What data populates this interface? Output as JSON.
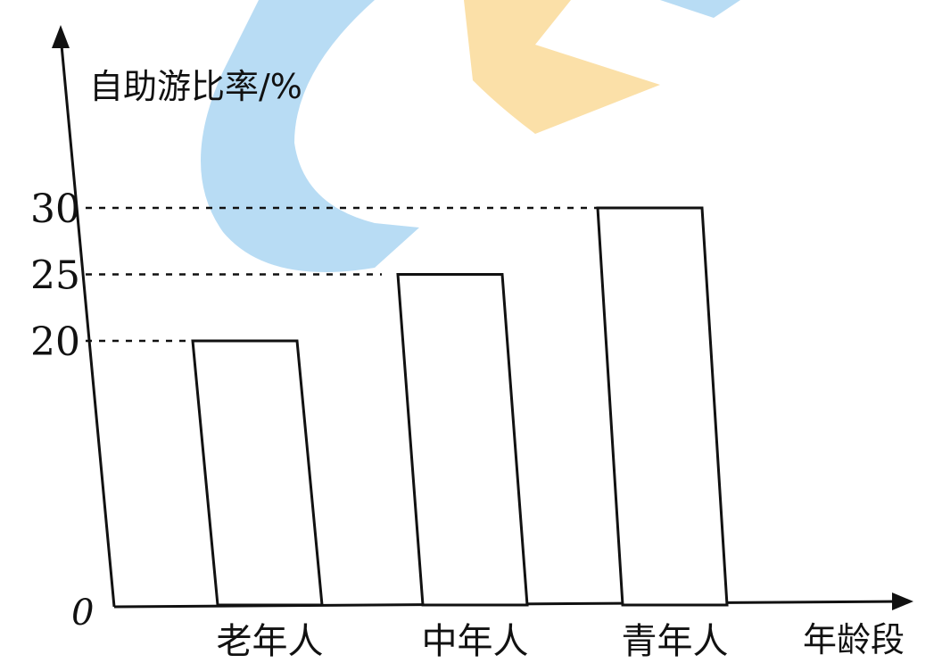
{
  "chart_data": {
    "type": "bar",
    "categories": [
      "老年人",
      "中年人",
      "青年人"
    ],
    "values": [
      20,
      25,
      30
    ],
    "title": "",
    "xlabel": "年龄段",
    "ylabel": "自助游比率/%",
    "yticks": [
      20,
      25,
      30
    ],
    "origin_label": "0",
    "ylim": [
      0,
      30
    ],
    "grid": false,
    "legend": "none",
    "colors": {
      "bar_fill": "#ffffff",
      "stroke": "#111111"
    }
  }
}
